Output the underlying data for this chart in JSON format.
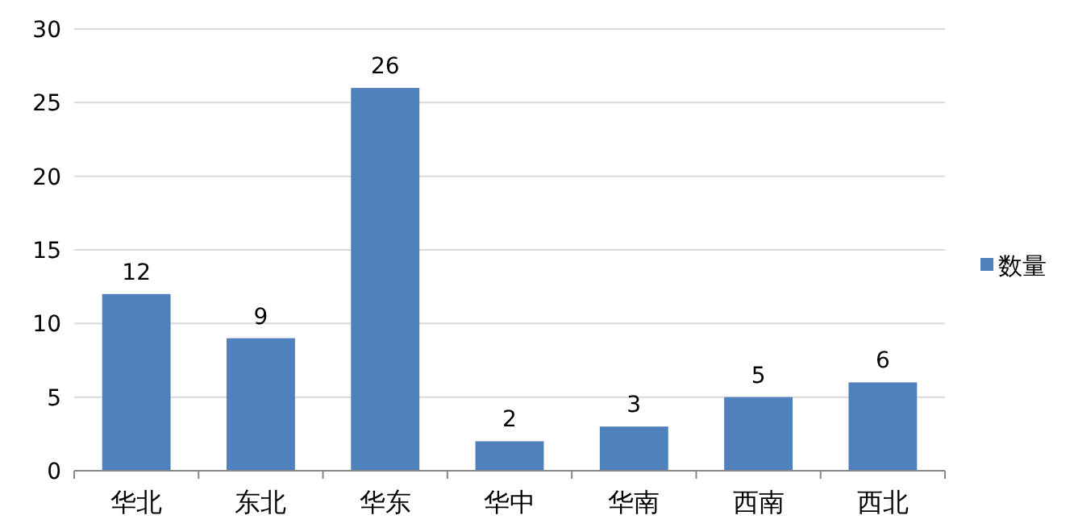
{
  "chart_data": {
    "type": "bar",
    "categories": [
      "华北",
      "东北",
      "华东",
      "华中",
      "华南",
      "西南",
      "西北"
    ],
    "series": [
      {
        "name": "数量",
        "color": "#4f81bd",
        "values": [
          12,
          9,
          26,
          2,
          3,
          5,
          6
        ]
      }
    ],
    "ylim": [
      0,
      30
    ],
    "yticks": [
      0,
      5,
      10,
      15,
      20,
      25,
      30
    ],
    "grid": "y",
    "legend": "right",
    "data_labels": true
  }
}
